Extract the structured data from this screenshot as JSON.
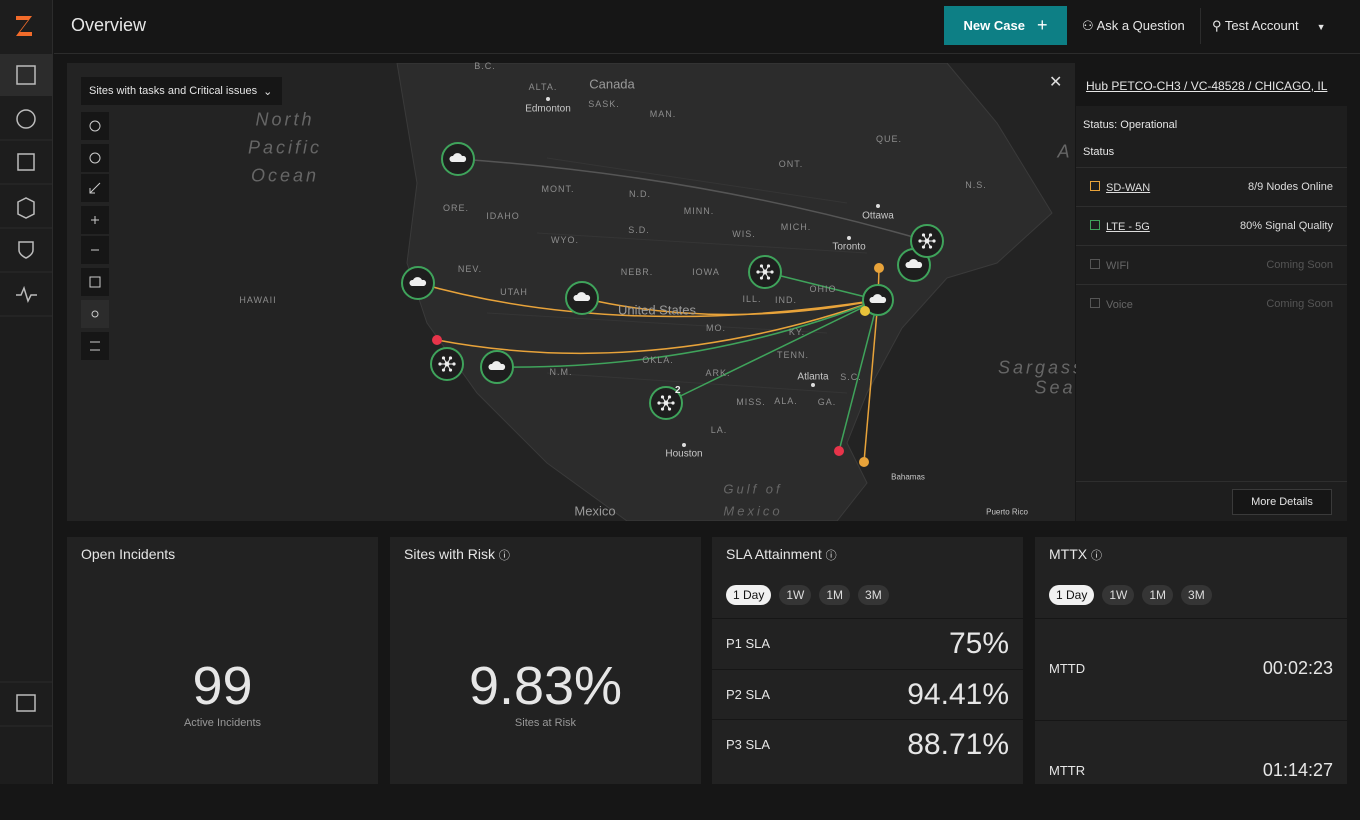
{
  "header": {
    "title": "Overview",
    "new_case": "New Case",
    "ask": "Ask a Question",
    "account": "Test Account"
  },
  "map": {
    "filter": "Sites with tasks and Critical issues",
    "badge": "2",
    "labels": [
      "B.C.",
      "Canada",
      "ALTA.",
      "Edmonton",
      "SASK.",
      "MAN.",
      "North",
      "Pacific",
      "Ocean",
      "ONT.",
      "QUE.",
      "MONT.",
      "N.D.",
      "MINN.",
      "Ottawa",
      "N.S.",
      "ORE.",
      "IDAHO",
      "WYO.",
      "S.D.",
      "WIS.",
      "MICH.",
      "Toronto",
      "NEV.",
      "NEBR.",
      "IOWA",
      "UTAH",
      "United States",
      "ILL.",
      "IND.",
      "OHIO",
      "HAWAII",
      "KY.",
      "MO.",
      "OKLA.",
      "TENN.",
      "N.M.",
      "ARK.",
      "Atlanta",
      "S.C.",
      "MISS.",
      "ALA.",
      "GA.",
      "LA.",
      "Houston",
      "Gulf of",
      "Mexico",
      "Mexico",
      "Bahamas",
      "Puerto Rico",
      "Sargasso",
      "Sea",
      "A"
    ]
  },
  "panel": {
    "title": "Hub PETCO-CH3 / VC-48528 / CHICAGO, IL",
    "status_line": "Status: Operational",
    "status_heading": "Status",
    "rows": [
      {
        "name": "SD-WAN",
        "value": "8/9 Nodes Online"
      },
      {
        "name": "LTE - 5G",
        "value": "80% Signal Quality"
      },
      {
        "name": "WIFI",
        "value": "Coming Soon"
      },
      {
        "name": "Voice",
        "value": "Coming Soon"
      }
    ],
    "more": "More Details"
  },
  "cards": {
    "incidents": {
      "title": "Open Incidents",
      "value": "99",
      "caption": "Active Incidents"
    },
    "risk": {
      "title": "Sites with Risk",
      "value": "9.83%",
      "caption": "Sites at Risk"
    },
    "sla": {
      "title": "SLA Attainment",
      "tabs": [
        "1 Day",
        "1W",
        "1M",
        "3M"
      ],
      "rows": [
        {
          "name": "P1 SLA",
          "value": "75%"
        },
        {
          "name": "P2 SLA",
          "value": "94.41%"
        },
        {
          "name": "P3 SLA",
          "value": "88.71%"
        }
      ]
    },
    "mttx": {
      "title": "MTTX",
      "tabs": [
        "1 Day",
        "1W",
        "1M",
        "3M"
      ],
      "rows": [
        {
          "name": "MTTD",
          "value": "00:02:23"
        },
        {
          "name": "MTTR",
          "value": "01:14:27"
        }
      ]
    }
  }
}
